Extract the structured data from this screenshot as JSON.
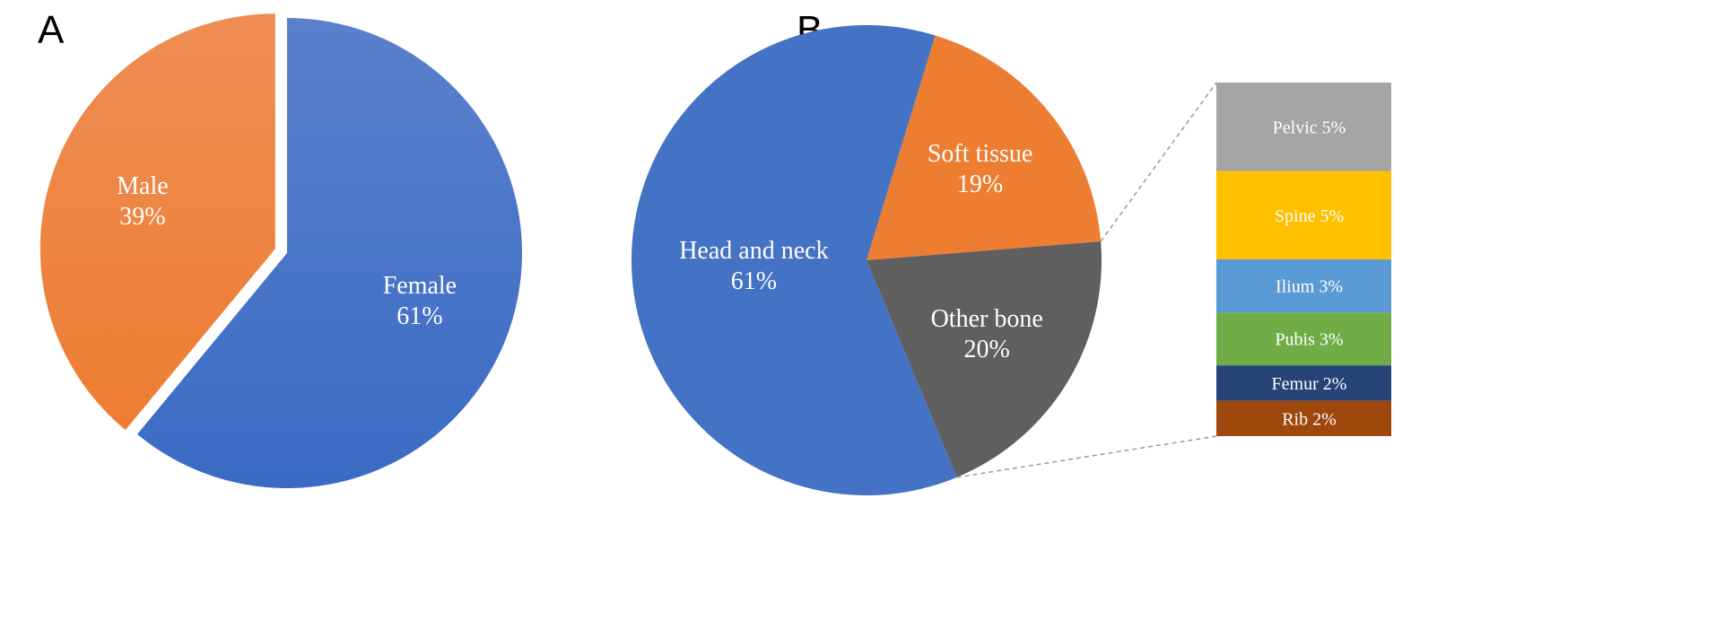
{
  "chart_data": [
    {
      "type": "pie",
      "panel": "A",
      "slices": [
        {
          "label": "Female",
          "pct_label": "61%",
          "value": 61,
          "color": "#3a6bc4",
          "color_light": "#5a80cc"
        },
        {
          "label": "Male",
          "pct_label": "39%",
          "value": 39,
          "color": "#ed7d31",
          "color_light": "#ef8d55",
          "exploded": true
        }
      ]
    },
    {
      "type": "pie",
      "panel": "B",
      "slices": [
        {
          "label": "Soft tissue",
          "pct_label": "19%",
          "value": 19,
          "color": "#ed7d31"
        },
        {
          "label": "Other bone",
          "pct_label": "20%",
          "value": 20,
          "color": "#5f5f5f"
        },
        {
          "label": "Head and neck",
          "pct_label": "61%",
          "value": 61,
          "color": "#4472c4"
        }
      ],
      "breakdown_of": "Other bone",
      "breakdown": [
        {
          "label": "Pelvic 5%",
          "value": 5,
          "color": "#a5a5a5"
        },
        {
          "label": "Spine 5%",
          "value": 5,
          "color": "#ffc000"
        },
        {
          "label": "Ilium 3%",
          "value": 3,
          "color": "#5b9bd5"
        },
        {
          "label": "Pubis 3%",
          "value": 3,
          "color": "#70ad47"
        },
        {
          "label": "Femur 2%",
          "value": 2,
          "color": "#264478"
        },
        {
          "label": "Rib 2%",
          "value": 2,
          "color": "#9e480e"
        }
      ]
    }
  ]
}
